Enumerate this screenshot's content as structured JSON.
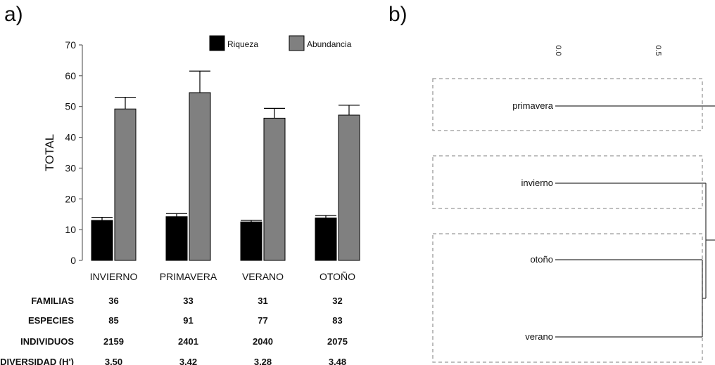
{
  "panels": {
    "a": "a)",
    "b": "b)"
  },
  "chart_data": [
    {
      "type": "bar",
      "ylabel": "TOTAL",
      "ylim": [
        0,
        70
      ],
      "yticks": [
        0,
        10,
        20,
        30,
        40,
        50,
        60,
        70
      ],
      "categories": [
        "INVIERNO",
        "PRIMAVERA",
        "VERANO",
        "OTOÑO"
      ],
      "legend_position": "top-right",
      "series": [
        {
          "name": "Riqueza",
          "color": "#000000",
          "values": [
            13,
            14.2,
            12.5,
            13.8
          ],
          "error": [
            1,
            1,
            0.5,
            0.8
          ]
        },
        {
          "name": "Abundancia",
          "color": "#808080",
          "values": [
            49.2,
            54.5,
            46.2,
            47.2
          ],
          "error": [
            3.8,
            7,
            3.2,
            3.2
          ]
        }
      ],
      "table": {
        "row_labels": [
          "FAMILIAS",
          "ESPECIES",
          "INDIVIDUOS",
          "DIVERSIDAD (H')"
        ],
        "rows": [
          [
            "36",
            "33",
            "31",
            "32"
          ],
          [
            "85",
            "91",
            "77",
            "83"
          ],
          [
            "2159",
            "2401",
            "2040",
            "2075"
          ],
          [
            "3.50",
            "3.42",
            "3.28",
            "3.48"
          ]
        ]
      }
    },
    {
      "type": "dendrogram",
      "axis_ticks": [
        "0.0",
        "0.5"
      ],
      "leaves": [
        "primavera",
        "invierno",
        "otoño",
        "verano"
      ]
    }
  ]
}
